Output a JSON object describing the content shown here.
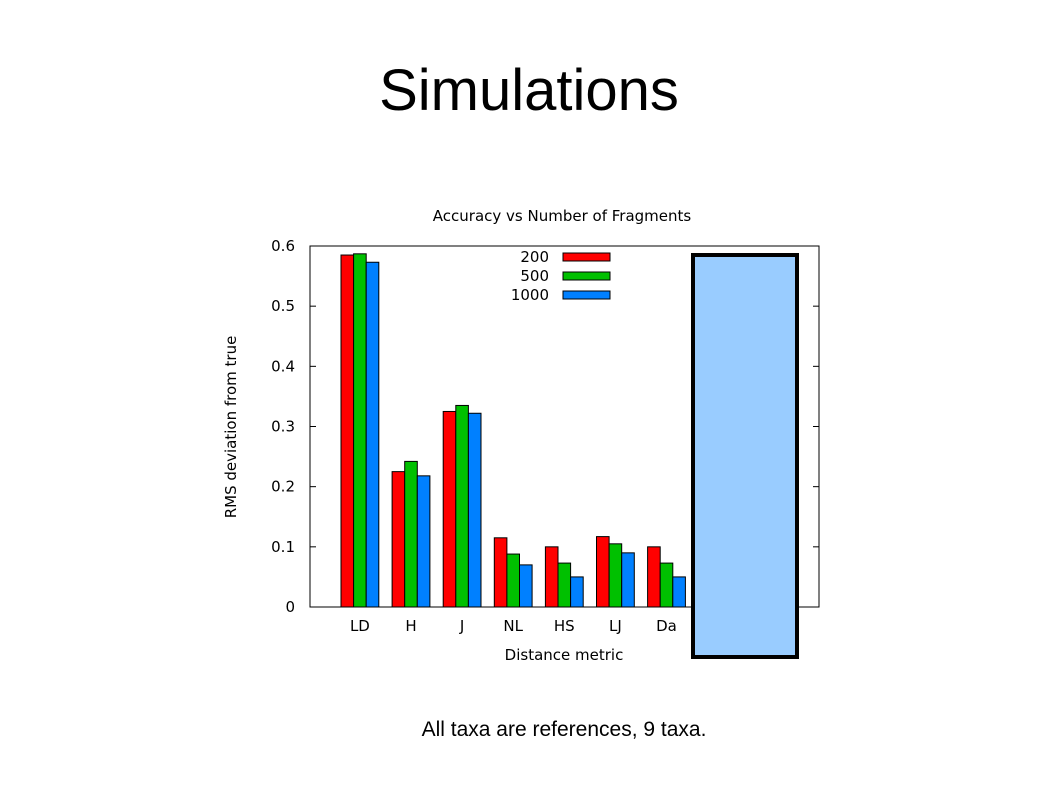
{
  "slide": {
    "title": "Simulations",
    "caption": "All taxa are references, 9 taxa."
  },
  "chart_data": {
    "type": "bar",
    "title": "Accuracy vs Number of Fragments",
    "xlabel": "Distance metric",
    "ylabel": "RMS deviation from true",
    "ylim": [
      0,
      0.6
    ],
    "yticks": [
      "0",
      "0.1",
      "0.2",
      "0.3",
      "0.4",
      "0.5",
      "0.6"
    ],
    "categories": [
      "LD",
      "H",
      "J",
      "NL",
      "HS",
      "LJ",
      "Da"
    ],
    "series": [
      {
        "name": "200",
        "color": "#ff0000",
        "values": [
          0.585,
          0.225,
          0.325,
          0.115,
          0.1,
          0.117,
          0.1
        ]
      },
      {
        "name": "500",
        "color": "#00c000",
        "values": [
          0.587,
          0.242,
          0.335,
          0.088,
          0.073,
          0.105,
          0.073
        ]
      },
      {
        "name": "1000",
        "color": "#0080ff",
        "values": [
          0.573,
          0.218,
          0.322,
          0.07,
          0.05,
          0.09,
          0.05
        ]
      }
    ],
    "legend_position": "top-center",
    "grid": false,
    "overlay": {
      "description": "light blue rectangle with thick black border covering rightmost categories",
      "fill": "#99ccff",
      "stroke": "#000000"
    }
  }
}
